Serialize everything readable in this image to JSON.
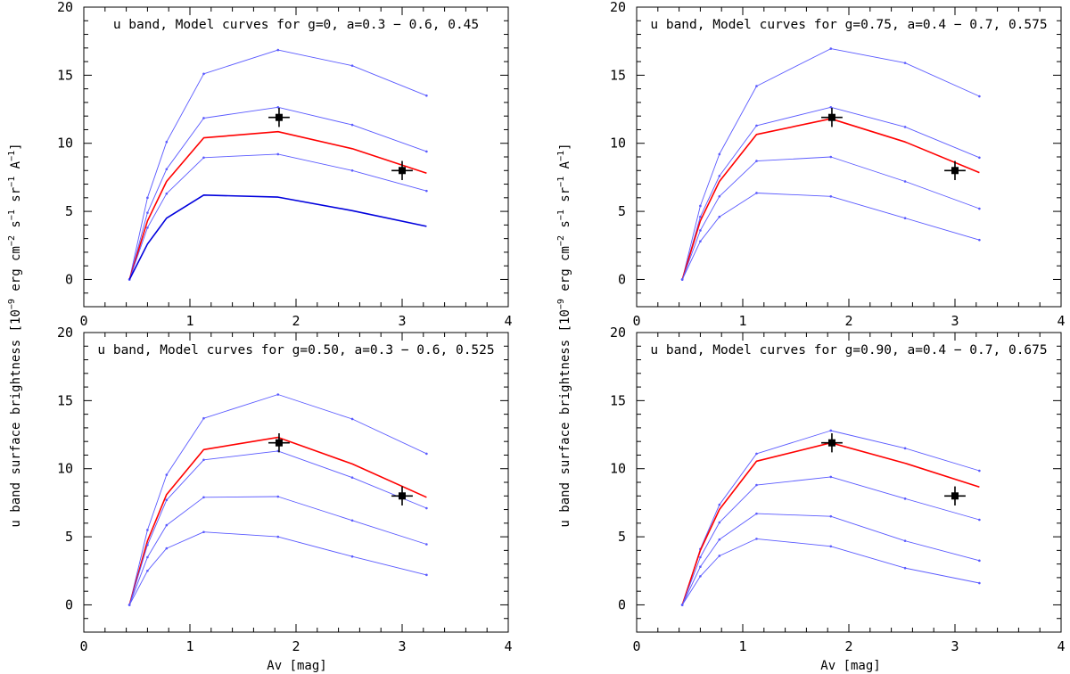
{
  "chart_data": {
    "ylabel": {
      "main": "u band surface brightness [10",
      "exp_9": "−9",
      "erg": " erg cm",
      "exp_cm": "−2",
      "s": " s",
      "exp_s": "−1",
      "sr": " sr",
      "exp_sr": "−1",
      "A": " A",
      "exp_A": "−1",
      "close": "]"
    },
    "xlabel": "Av [mag]",
    "colors": {
      "model": "#5a5aff",
      "highlight": "#ff0000",
      "dark_model": "#0000dd",
      "observation": "#000000",
      "frame": "#000000"
    },
    "panels": [
      {
        "type": "line",
        "title": "u band, Model curves for g=0, a=0.3 − 0.6, 0.45",
        "xlim": [
          0,
          4
        ],
        "ylim": [
          -2,
          20
        ],
        "x_ticks": [
          0,
          1,
          2,
          3,
          4
        ],
        "y_ticks": [
          0,
          5,
          10,
          15,
          20
        ],
        "series": [
          {
            "name": "model-1",
            "kind": "model",
            "x": [
              0.43,
              0.6,
              0.78,
              1.13,
              1.83,
              2.53,
              3.23
            ],
            "values": [
              0,
              6.0,
              10.1,
              15.1,
              16.85,
              15.7,
              13.5
            ]
          },
          {
            "name": "model-2",
            "kind": "model",
            "x": [
              0.43,
              0.6,
              0.78,
              1.13,
              1.83,
              2.53,
              3.23
            ],
            "values": [
              0,
              4.9,
              8.1,
              11.85,
              12.65,
              11.35,
              9.4
            ]
          },
          {
            "name": "model-3",
            "kind": "highlight",
            "x": [
              0.43,
              0.6,
              0.78,
              1.13,
              1.83,
              2.53,
              3.23
            ],
            "values": [
              0,
              4.3,
              7.2,
              10.4,
              10.85,
              9.6,
              7.8
            ]
          },
          {
            "name": "model-4",
            "kind": "model",
            "x": [
              0.43,
              0.6,
              0.78,
              1.13,
              1.83,
              2.53,
              3.23
            ],
            "values": [
              0,
              3.8,
              6.3,
              8.95,
              9.2,
              8.0,
              6.5
            ]
          },
          {
            "name": "model-5",
            "kind": "dark",
            "x": [
              0.43,
              0.6,
              0.78,
              1.13,
              1.83,
              2.53,
              3.23
            ],
            "values": [
              0,
              2.6,
              4.5,
              6.2,
              6.05,
              5.05,
              3.9
            ]
          }
        ],
        "observations": [
          {
            "x": 1.84,
            "y": 11.9,
            "xerr": 0.1,
            "yerr": 0.7
          },
          {
            "x": 3.0,
            "y": 8.0,
            "xerr": 0.1,
            "yerr": 0.7
          }
        ]
      },
      {
        "type": "line",
        "title": "u band, Model curves for g=0.75, a=0.4 − 0.7, 0.575",
        "xlim": [
          0,
          4
        ],
        "ylim": [
          -2,
          20
        ],
        "x_ticks": [
          0,
          1,
          2,
          3,
          4
        ],
        "y_ticks": [
          0,
          5,
          10,
          15,
          20
        ],
        "series": [
          {
            "name": "model-1",
            "kind": "model",
            "x": [
              0.43,
              0.6,
              0.78,
              1.13,
              1.83,
              2.53,
              3.23
            ],
            "values": [
              0,
              5.4,
              9.2,
              14.2,
              16.95,
              15.9,
              13.45
            ]
          },
          {
            "name": "model-2",
            "kind": "model",
            "x": [
              0.43,
              0.6,
              0.78,
              1.13,
              1.83,
              2.53,
              3.23
            ],
            "values": [
              0,
              4.6,
              7.6,
              11.3,
              12.65,
              11.2,
              8.95
            ]
          },
          {
            "name": "model-3",
            "kind": "highlight",
            "x": [
              0.43,
              0.6,
              0.78,
              1.13,
              1.83,
              2.53,
              3.23
            ],
            "values": [
              0,
              4.3,
              7.2,
              10.65,
              11.8,
              10.1,
              7.85
            ]
          },
          {
            "name": "model-4",
            "kind": "model",
            "x": [
              0.43,
              0.6,
              0.78,
              1.13,
              1.83,
              2.53,
              3.23
            ],
            "values": [
              0,
              3.6,
              6.1,
              8.7,
              9.0,
              7.2,
              5.2
            ]
          },
          {
            "name": "model-5",
            "kind": "model",
            "x": [
              0.43,
              0.6,
              0.78,
              1.13,
              1.83,
              2.53,
              3.23
            ],
            "values": [
              0,
              2.8,
              4.6,
              6.35,
              6.1,
              4.5,
              2.9
            ]
          }
        ],
        "observations": [
          {
            "x": 1.84,
            "y": 11.9,
            "xerr": 0.1,
            "yerr": 0.7
          },
          {
            "x": 3.0,
            "y": 8.0,
            "xerr": 0.1,
            "yerr": 0.7
          }
        ]
      },
      {
        "type": "line",
        "title": "u band, Model curves for g=0.50, a=0.3 − 0.6, 0.525",
        "xlim": [
          0,
          4
        ],
        "ylim": [
          -2,
          20
        ],
        "x_ticks": [
          0,
          1,
          2,
          3,
          4
        ],
        "y_ticks": [
          0,
          5,
          10,
          15,
          20
        ],
        "series": [
          {
            "name": "model-1",
            "kind": "model",
            "x": [
              0.43,
              0.6,
              0.78,
              1.13,
              1.83,
              2.53,
              3.23
            ],
            "values": [
              0,
              5.5,
              9.55,
              13.7,
              15.45,
              13.65,
              11.1
            ]
          },
          {
            "name": "model-2",
            "kind": "highlight",
            "x": [
              0.43,
              0.6,
              0.78,
              1.13,
              1.83,
              2.53,
              3.23
            ],
            "values": [
              0,
              4.7,
              8.1,
              11.4,
              12.3,
              10.35,
              7.9
            ]
          },
          {
            "name": "model-3",
            "kind": "model",
            "x": [
              0.43,
              0.6,
              0.78,
              1.13,
              1.83,
              2.53,
              3.23
            ],
            "values": [
              0,
              4.4,
              7.7,
              10.65,
              11.3,
              9.35,
              7.1
            ]
          },
          {
            "name": "model-4",
            "kind": "model",
            "x": [
              0.43,
              0.6,
              0.78,
              1.13,
              1.83,
              2.53,
              3.23
            ],
            "values": [
              0,
              3.5,
              5.85,
              7.9,
              7.95,
              6.2,
              4.45
            ]
          },
          {
            "name": "model-5",
            "kind": "model",
            "x": [
              0.43,
              0.6,
              0.78,
              1.13,
              1.83,
              2.53,
              3.23
            ],
            "values": [
              0,
              2.5,
              4.15,
              5.35,
              5.0,
              3.55,
              2.2
            ]
          }
        ],
        "observations": [
          {
            "x": 1.84,
            "y": 11.9,
            "xerr": 0.1,
            "yerr": 0.7
          },
          {
            "x": 3.0,
            "y": 8.0,
            "xerr": 0.1,
            "yerr": 0.7
          }
        ]
      },
      {
        "type": "line",
        "title": "u band, Model curves for g=0.90, a=0.4 − 0.7, 0.675",
        "xlim": [
          0,
          4
        ],
        "ylim": [
          -2,
          20
        ],
        "x_ticks": [
          0,
          1,
          2,
          3,
          4
        ],
        "y_ticks": [
          0,
          5,
          10,
          15,
          20
        ],
        "series": [
          {
            "name": "model-1",
            "kind": "model",
            "x": [
              0.43,
              0.6,
              0.78,
              1.13,
              1.83,
              2.53,
              3.23
            ],
            "values": [
              0,
              4.1,
              7.35,
              11.1,
              12.8,
              11.5,
              9.85
            ]
          },
          {
            "name": "model-2",
            "kind": "highlight",
            "x": [
              0.43,
              0.6,
              0.78,
              1.13,
              1.83,
              2.53,
              3.23
            ],
            "values": [
              0,
              4.0,
              7.0,
              10.55,
              11.9,
              10.4,
              8.65
            ]
          },
          {
            "name": "model-3",
            "kind": "model",
            "x": [
              0.43,
              0.6,
              0.78,
              1.13,
              1.83,
              2.53,
              3.23
            ],
            "values": [
              0,
              3.5,
              6.05,
              8.8,
              9.4,
              7.8,
              6.25
            ]
          },
          {
            "name": "model-4",
            "kind": "model",
            "x": [
              0.43,
              0.6,
              0.78,
              1.13,
              1.83,
              2.53,
              3.23
            ],
            "values": [
              0,
              2.8,
              4.8,
              6.7,
              6.5,
              4.7,
              3.25
            ]
          },
          {
            "name": "model-5",
            "kind": "model",
            "x": [
              0.43,
              0.6,
              0.78,
              1.13,
              1.83,
              2.53,
              3.23
            ],
            "values": [
              0,
              2.1,
              3.6,
              4.85,
              4.3,
              2.7,
              1.6
            ]
          }
        ],
        "observations": [
          {
            "x": 1.84,
            "y": 11.9,
            "xerr": 0.1,
            "yerr": 0.7
          },
          {
            "x": 3.0,
            "y": 8.0,
            "xerr": 0.1,
            "yerr": 0.7
          }
        ]
      }
    ]
  }
}
